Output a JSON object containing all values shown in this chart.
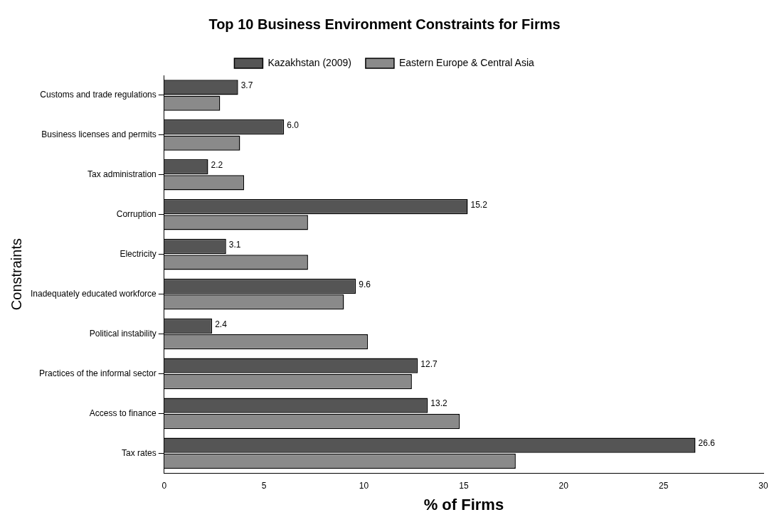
{
  "chart_data": {
    "type": "bar",
    "orientation": "horizontal",
    "title": "Top 10 Business Environment Constraints for Firms",
    "xlabel": "% of Firms",
    "ylabel": "Constraints",
    "categories": [
      "Customs and trade regulations",
      "Business licenses and permits",
      "Tax administration",
      "Corruption",
      "Electricity",
      "Inadequately educated workforce",
      "Political instability",
      "Practices of the informal sector",
      "Access to finance",
      "Tax rates"
    ],
    "series": [
      {
        "name": "Kazakhstan (2009)",
        "color": "#555555",
        "values": [
          3.7,
          6.0,
          2.2,
          15.2,
          3.1,
          9.6,
          2.4,
          12.7,
          13.2,
          26.6
        ],
        "value_labels": [
          "3.7",
          "6.0",
          "2.2",
          "15.2",
          "3.1",
          "9.6",
          "2.4",
          "12.7",
          "13.2",
          "26.6"
        ]
      },
      {
        "name": "Eastern Europe & Central Asia",
        "color": "#8a8a8a",
        "values": [
          2.8,
          3.8,
          4.0,
          7.2,
          7.2,
          9.0,
          10.2,
          12.4,
          14.8,
          17.6
        ]
      }
    ],
    "xlim": [
      0,
      30
    ],
    "xticks": [
      0,
      5,
      10,
      15,
      20,
      25,
      30
    ],
    "grid": false,
    "legend": "top"
  }
}
